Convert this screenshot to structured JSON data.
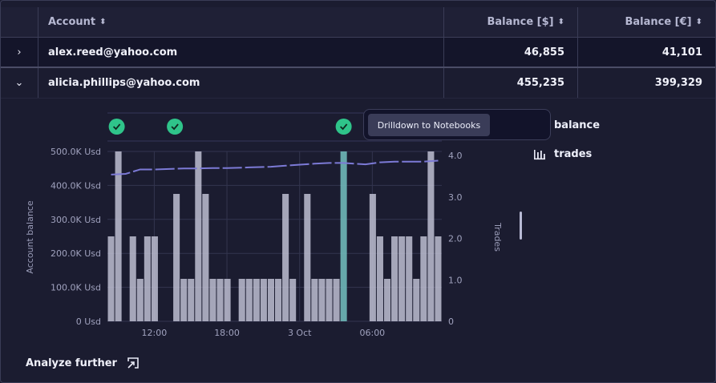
{
  "table": {
    "headers": {
      "account": "Account",
      "balance_usd": "Balance [$]",
      "balance_eur": "Balance [€]"
    },
    "rows": [
      {
        "account": "alex.reed@yahoo.com",
        "balance_usd": "46,855",
        "balance_eur": "41,101",
        "expanded": false
      },
      {
        "account": "alicia.phillips@yahoo.com",
        "balance_usd": "455,235",
        "balance_eur": "399,329",
        "expanded": true
      }
    ]
  },
  "tooltip": {
    "action_label": "Drilldown to Notebooks"
  },
  "legend": {
    "balance_label": "balance",
    "trades_label": "trades"
  },
  "analyze_label": "Analyze further",
  "colors": {
    "bars": "#c4c4d8",
    "highlight_bar": "#6fb8b8",
    "balance_line": "#7c7ad6",
    "check": "#2fc48a"
  },
  "chart_data": {
    "type": "bar",
    "ylabel": "Account balance",
    "y2label": "Trades",
    "y_ticks": [
      "500.0K Usd",
      "400.0K Usd",
      "300.0K Usd",
      "200.0K Usd",
      "100.0K Usd",
      "0 Usd"
    ],
    "y2_ticks": [
      "4.0",
      "3.0",
      "2.0",
      "1.0",
      "0"
    ],
    "ylim": [
      0,
      500000
    ],
    "y2lim": [
      0,
      4
    ],
    "x_ticks": [
      "12:00",
      "18:00",
      "3 Oct",
      "06:00"
    ],
    "trades": [
      2,
      4,
      0,
      2,
      1,
      2,
      2,
      0,
      0,
      3,
      1,
      1,
      4,
      3,
      1,
      1,
      1,
      0,
      1,
      1,
      1,
      1,
      1,
      1,
      3,
      1,
      0,
      3,
      1,
      1,
      1,
      1,
      4,
      0,
      0,
      0,
      3,
      2,
      1,
      2,
      2,
      2,
      1,
      2,
      4,
      2
    ],
    "highlight_index": 32,
    "events_at_index": [
      1,
      9,
      32
    ],
    "balance": [
      [
        0,
        432000
      ],
      [
        2,
        434000
      ],
      [
        4,
        447000
      ],
      [
        6,
        447000
      ],
      [
        10,
        450000
      ],
      [
        12,
        450000
      ],
      [
        14,
        451000
      ],
      [
        16,
        451000
      ],
      [
        19,
        453000
      ],
      [
        22,
        455000
      ],
      [
        24,
        458000
      ],
      [
        26,
        461000
      ],
      [
        28,
        464000
      ],
      [
        30,
        466000
      ],
      [
        32,
        466000
      ],
      [
        35,
        462000
      ],
      [
        37,
        468000
      ],
      [
        39,
        470000
      ],
      [
        41,
        470000
      ],
      [
        43,
        470000
      ],
      [
        45,
        473000
      ]
    ]
  }
}
